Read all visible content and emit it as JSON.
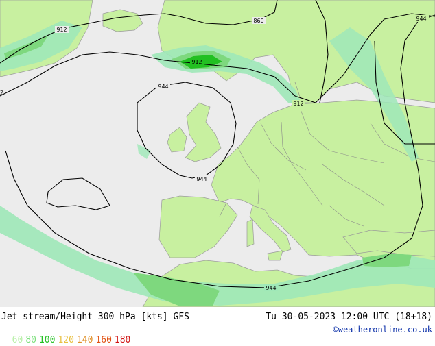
{
  "header": {
    "title": "Jet stream/Height 300 hPa [kts] GFS",
    "valid_time": "Tu 30-05-2023 12:00 UTC (18+18)",
    "credit": "©weatheronline.co.uk"
  },
  "legend": {
    "items": [
      {
        "label": "60",
        "color": "#b8f0a8"
      },
      {
        "label": "80",
        "color": "#7ee07e"
      },
      {
        "label": "100",
        "color": "#22c022"
      },
      {
        "label": "120",
        "color": "#e8c040"
      },
      {
        "label": "140",
        "color": "#e09028"
      },
      {
        "label": "160",
        "color": "#e05010"
      },
      {
        "label": "180",
        "color": "#d01010"
      }
    ]
  },
  "map": {
    "colors": {
      "sea": "#ececec",
      "land": "#c8f0a0",
      "border": "#888888",
      "jet_weak": "#9fe8b8",
      "jet_80": "#7ed87e",
      "jet_100": "#22c022",
      "contour": "#000000"
    },
    "contour_labels": [
      "912",
      "860",
      "912",
      "944",
      "912",
      "944",
      "944",
      "944",
      "2"
    ]
  }
}
